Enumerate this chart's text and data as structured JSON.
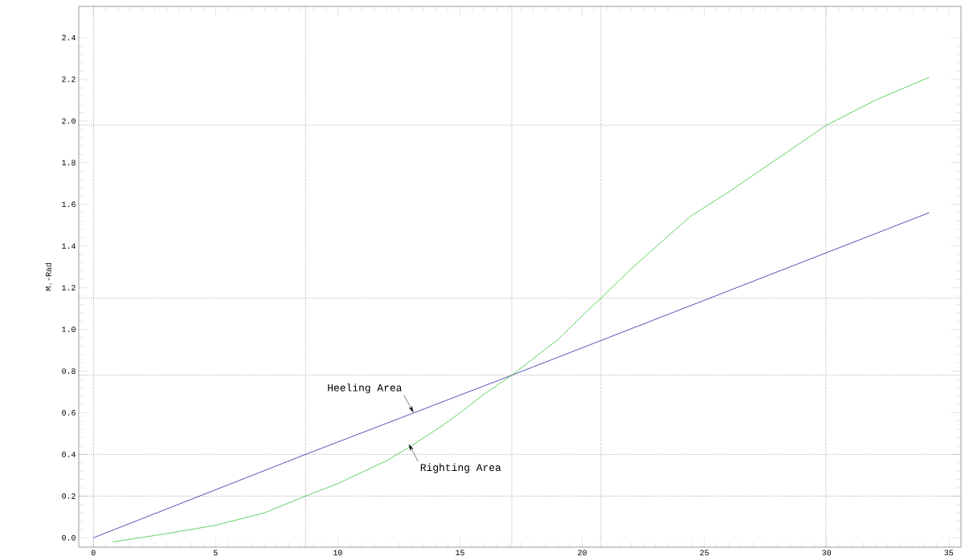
{
  "chart_data": {
    "type": "line",
    "ylabel": "M.-Rad",
    "xlim": [
      -0.6,
      35.5
    ],
    "ylim": [
      -0.045,
      2.55
    ],
    "xticks": [
      0,
      5,
      10,
      15,
      20,
      25,
      30,
      35
    ],
    "yticks": [
      {
        "value": 0,
        "label": "0.0"
      },
      {
        "value": 0.2,
        "label": "0.2"
      },
      {
        "value": 0.4,
        "label": "0.4"
      },
      {
        "value": 0.6,
        "label": "0.6"
      },
      {
        "value": 0.8,
        "label": "0.8"
      },
      {
        "value": 1.0,
        "label": "1.0"
      },
      {
        "value": 1.2,
        "label": "1.2"
      },
      {
        "value": 1.4,
        "label": "1.4"
      },
      {
        "value": 1.6,
        "label": "1.6"
      },
      {
        "value": 1.8,
        "label": "1.8"
      },
      {
        "value": 2.0,
        "label": "2.0"
      },
      {
        "value": 2.2,
        "label": "2.2"
      },
      {
        "value": 2.4,
        "label": "2.4"
      }
    ],
    "grid": false,
    "marker": "none",
    "line_style": "solid",
    "series": [
      {
        "color": "#2a2a9e",
        "x": [
          0,
          8.68,
          17.12,
          34.2
        ],
        "values": [
          0,
          0.4,
          0.78,
          1.56
        ]
      },
      {
        "color": "#3cc43c",
        "x": [
          0.8,
          3,
          5,
          7,
          8.68,
          10,
          12,
          13,
          14.3,
          15,
          16,
          17.12,
          18,
          19,
          20.3,
          20.77,
          22,
          24.4,
          26,
          28,
          30,
          32,
          34.2
        ],
        "values": [
          -0.02,
          0.02,
          0.06,
          0.12,
          0.2,
          0.26,
          0.37,
          0.44,
          0.54,
          0.6,
          0.69,
          0.78,
          0.86,
          0.95,
          1.1,
          1.15,
          1.29,
          1.54,
          1.66,
          1.82,
          1.98,
          2.1,
          2.21
        ]
      }
    ],
    "ref_lines": [
      {
        "axis": "x",
        "value": 0,
        "line_style": "dotted",
        "color": "#000000"
      },
      {
        "axis": "x",
        "value": 8.68,
        "line_style": "dotted",
        "color": "#000000"
      },
      {
        "axis": "x",
        "value": 17.12,
        "line_style": "dotted",
        "color": "#000000"
      },
      {
        "axis": "x",
        "value": 20.77,
        "line_style": "dotted",
        "color": "#000000"
      },
      {
        "axis": "x",
        "value": 29.97,
        "line_style": "dotted",
        "color": "#000000"
      },
      {
        "axis": "y",
        "value": 0.2,
        "line_style": "dotted",
        "color": "#000000"
      },
      {
        "axis": "y",
        "value": 0.4,
        "line_style": "dotted",
        "color": "#000000"
      },
      {
        "axis": "y",
        "value": 0.78,
        "line_style": "dotted",
        "color": "#000000"
      },
      {
        "axis": "y",
        "value": 1.15,
        "line_style": "dotted",
        "color": "#000000"
      },
      {
        "axis": "y",
        "value": 1.98,
        "line_style": "dotted",
        "color": "#000000"
      }
    ],
    "annotations": [
      {
        "text": "Heeling Area",
        "x": 13.1,
        "y": 0.6
      },
      {
        "text": "Righting Area",
        "x": 12.9,
        "y": 0.45
      }
    ]
  }
}
